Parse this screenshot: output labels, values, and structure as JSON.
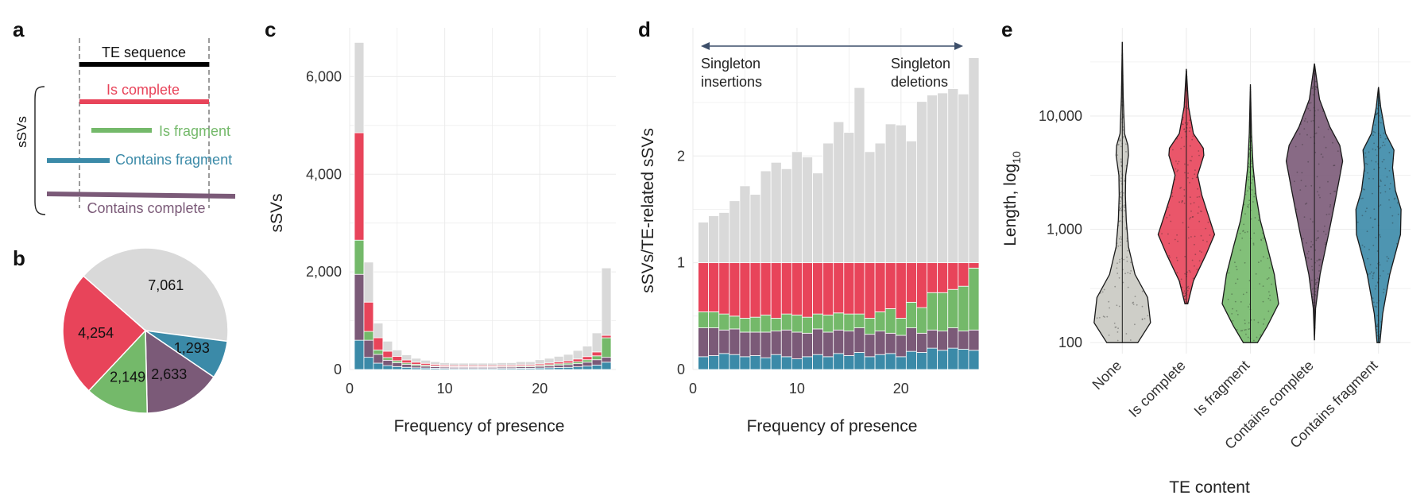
{
  "colors": {
    "other": "#d9d9d9",
    "is_complete": "#e8445a",
    "is_fragment": "#74b96a",
    "contains_fragment": "#3b8aa8",
    "contains_complete": "#7b5a78",
    "none": "#c9c9c2",
    "grid": "#ebebeb",
    "axis_text": "#333333"
  },
  "panels": {
    "a": {
      "letter": "a",
      "te_sequence": "TE sequence",
      "is_complete": "Is complete",
      "is_fragment": "Is fragment",
      "contains_fragment": "Contains fragment",
      "contains_complete": "Contains complete",
      "bracket_label": "sSVs"
    },
    "b": {
      "letter": "b"
    },
    "c": {
      "letter": "c"
    },
    "d": {
      "letter": "d",
      "annot_left_1": "Singleton",
      "annot_left_2": "insertions",
      "annot_right_1": "Singleton",
      "annot_right_2": "deletions"
    },
    "e": {
      "letter": "e"
    }
  },
  "chart_data": [
    {
      "panel": "b",
      "type": "pie",
      "slices": [
        {
          "category": "other",
          "value": 7061,
          "label": "7,061"
        },
        {
          "category": "contains_fragment",
          "value": 1293,
          "label": "1,293"
        },
        {
          "category": "contains_complete",
          "value": 2633,
          "label": "2,633"
        },
        {
          "category": "is_fragment",
          "value": 2149,
          "label": "2,149"
        },
        {
          "category": "is_complete",
          "value": 4254,
          "label": "4,254"
        }
      ]
    },
    {
      "panel": "c",
      "type": "bar",
      "stacked": true,
      "xlabel": "Frequency of presence",
      "ylabel": "sSVs",
      "xlim": [
        0,
        28
      ],
      "ylim": [
        0,
        7000
      ],
      "x_ticks": [
        0,
        10,
        20
      ],
      "x_tick_labels": [
        "0",
        "10",
        "20"
      ],
      "y_ticks": [
        0,
        2000,
        4000,
        6000
      ],
      "y_tick_labels": [
        "0",
        "2,000",
        "4,000",
        "6,000"
      ],
      "x": [
        1,
        2,
        3,
        4,
        5,
        6,
        7,
        8,
        9,
        10,
        11,
        12,
        13,
        14,
        15,
        16,
        17,
        18,
        19,
        20,
        21,
        22,
        23,
        24,
        25,
        26,
        27
      ],
      "series": [
        {
          "category": "contains_fragment",
          "values": [
            600,
            250,
            130,
            80,
            60,
            45,
            35,
            30,
            25,
            22,
            20,
            20,
            20,
            20,
            20,
            22,
            22,
            25,
            25,
            30,
            35,
            40,
            45,
            55,
            70,
            90,
            150
          ]
        },
        {
          "category": "contains_complete",
          "values": [
            1350,
            350,
            180,
            110,
            80,
            60,
            45,
            38,
            32,
            28,
            25,
            25,
            25,
            25,
            25,
            27,
            27,
            30,
            30,
            35,
            40,
            48,
            55,
            65,
            80,
            110,
            100
          ]
        },
        {
          "category": "is_fragment",
          "values": [
            700,
            180,
            90,
            55,
            40,
            30,
            25,
            20,
            18,
            15,
            14,
            14,
            14,
            14,
            14,
            15,
            15,
            17,
            17,
            20,
            23,
            28,
            33,
            40,
            50,
            80,
            400
          ]
        },
        {
          "category": "is_complete",
          "values": [
            2200,
            600,
            250,
            130,
            90,
            60,
            45,
            38,
            30,
            25,
            22,
            22,
            22,
            22,
            22,
            23,
            23,
            25,
            25,
            30,
            35,
            40,
            45,
            55,
            65,
            80,
            50
          ]
        },
        {
          "category": "other",
          "values": [
            1850,
            820,
            300,
            205,
            130,
            105,
            80,
            64,
            55,
            50,
            49,
            49,
            49,
            49,
            49,
            53,
            53,
            63,
            63,
            85,
            97,
            114,
            132,
            175,
            215,
            390,
            1380
          ]
        }
      ]
    },
    {
      "panel": "d",
      "type": "bar",
      "stacked": true,
      "xlabel": "Frequency of presence",
      "ylabel": "sSVs/TE-related sSVs",
      "xlim": [
        0,
        27.5
      ],
      "ylim": [
        0,
        3.2
      ],
      "x_ticks": [
        0,
        10,
        20
      ],
      "x_tick_labels": [
        "0",
        "10",
        "20"
      ],
      "y_ticks": [
        0,
        1,
        2
      ],
      "y_tick_labels": [
        "0",
        "1",
        "2"
      ],
      "x": [
        1,
        2,
        3,
        4,
        5,
        6,
        7,
        8,
        9,
        10,
        11,
        12,
        13,
        14,
        15,
        16,
        17,
        18,
        19,
        20,
        21,
        22,
        23,
        24,
        25,
        26,
        27
      ],
      "series": [
        {
          "category": "contains_fragment",
          "values": [
            0.12,
            0.13,
            0.15,
            0.14,
            0.12,
            0.13,
            0.11,
            0.14,
            0.12,
            0.1,
            0.12,
            0.14,
            0.12,
            0.15,
            0.13,
            0.16,
            0.12,
            0.14,
            0.15,
            0.12,
            0.17,
            0.16,
            0.2,
            0.18,
            0.2,
            0.19,
            0.18
          ]
        },
        {
          "category": "contains_complete",
          "values": [
            0.27,
            0.26,
            0.22,
            0.24,
            0.23,
            0.22,
            0.24,
            0.22,
            0.25,
            0.25,
            0.22,
            0.24,
            0.23,
            0.22,
            0.23,
            0.23,
            0.21,
            0.22,
            0.19,
            0.2,
            0.22,
            0.18,
            0.17,
            0.18,
            0.19,
            0.17,
            0.19
          ]
        },
        {
          "category": "is_fragment",
          "values": [
            0.15,
            0.15,
            0.15,
            0.12,
            0.13,
            0.14,
            0.16,
            0.12,
            0.15,
            0.16,
            0.15,
            0.14,
            0.16,
            0.16,
            0.16,
            0.13,
            0.15,
            0.18,
            0.23,
            0.16,
            0.24,
            0.24,
            0.35,
            0.36,
            0.36,
            0.42,
            0.58
          ]
        },
        {
          "category": "is_complete",
          "values": [
            0.46,
            0.46,
            0.48,
            0.5,
            0.52,
            0.51,
            0.49,
            0.52,
            0.48,
            0.49,
            0.51,
            0.48,
            0.49,
            0.47,
            0.48,
            0.48,
            0.52,
            0.46,
            0.43,
            0.52,
            0.37,
            0.42,
            0.28,
            0.28,
            0.25,
            0.22,
            0.05
          ]
        },
        {
          "category": "other",
          "values": [
            0.38,
            0.44,
            0.47,
            0.58,
            0.72,
            0.64,
            0.86,
            0.94,
            0.88,
            1.04,
            0.99,
            0.84,
            1.12,
            1.32,
            1.22,
            1.64,
            1.04,
            1.12,
            1.3,
            1.29,
            1.14,
            1.51,
            1.57,
            1.59,
            1.63,
            1.58,
            1.92
          ]
        }
      ]
    },
    {
      "panel": "e",
      "type": "violin",
      "xlabel": "TE content",
      "ylabel": "Length, log",
      "ylabel_sub": "10",
      "yscale": "log",
      "ylim": [
        80,
        60000
      ],
      "y_ticks": [
        100,
        1000,
        10000
      ],
      "y_tick_labels": [
        "100",
        "1,000",
        "10,000"
      ],
      "groups": [
        {
          "label": "None",
          "category": "none",
          "min": 100,
          "max": 45000,
          "profile": [
            [
              100,
              0.55
            ],
            [
              150,
              1.0
            ],
            [
              250,
              0.9
            ],
            [
              400,
              0.45
            ],
            [
              700,
              0.22
            ],
            [
              1200,
              0.14
            ],
            [
              2000,
              0.11
            ],
            [
              3000,
              0.12
            ],
            [
              4500,
              0.22
            ],
            [
              5500,
              0.2
            ],
            [
              7000,
              0.08
            ],
            [
              15000,
              0.03
            ],
            [
              45000,
              0.0
            ]
          ]
        },
        {
          "label": "Is complete",
          "category": "is_complete",
          "min": 220,
          "max": 26000,
          "profile": [
            [
              220,
              0.05
            ],
            [
              350,
              0.25
            ],
            [
              600,
              0.7
            ],
            [
              900,
              1.0
            ],
            [
              1400,
              0.75
            ],
            [
              2000,
              0.55
            ],
            [
              3000,
              0.4
            ],
            [
              4500,
              0.62
            ],
            [
              5200,
              0.6
            ],
            [
              7000,
              0.25
            ],
            [
              12000,
              0.08
            ],
            [
              26000,
              0.0
            ]
          ]
        },
        {
          "label": "Is fragment",
          "category": "is_fragment",
          "min": 100,
          "max": 19000,
          "profile": [
            [
              100,
              0.25
            ],
            [
              140,
              0.6
            ],
            [
              220,
              1.0
            ],
            [
              400,
              0.85
            ],
            [
              700,
              0.6
            ],
            [
              1200,
              0.35
            ],
            [
              2000,
              0.2
            ],
            [
              3500,
              0.1
            ],
            [
              7000,
              0.04
            ],
            [
              19000,
              0.0
            ]
          ]
        },
        {
          "label": "Contains complete",
          "category": "contains_complete",
          "min": 105,
          "max": 29000,
          "profile": [
            [
              105,
              0.0
            ],
            [
              200,
              0.04
            ],
            [
              400,
              0.2
            ],
            [
              900,
              0.5
            ],
            [
              1600,
              0.7
            ],
            [
              2500,
              0.85
            ],
            [
              4000,
              1.0
            ],
            [
              5500,
              0.9
            ],
            [
              8000,
              0.55
            ],
            [
              14000,
              0.18
            ],
            [
              29000,
              0.0
            ]
          ]
        },
        {
          "label": "Contains fragment",
          "category": "contains_fragment",
          "min": 100,
          "max": 18000,
          "profile": [
            [
              100,
              0.05
            ],
            [
              180,
              0.15
            ],
            [
              400,
              0.4
            ],
            [
              900,
              0.78
            ],
            [
              1500,
              0.8
            ],
            [
              2200,
              0.6
            ],
            [
              3500,
              0.5
            ],
            [
              5000,
              0.55
            ],
            [
              7000,
              0.25
            ],
            [
              12000,
              0.08
            ],
            [
              18000,
              0.0
            ]
          ]
        }
      ]
    }
  ]
}
